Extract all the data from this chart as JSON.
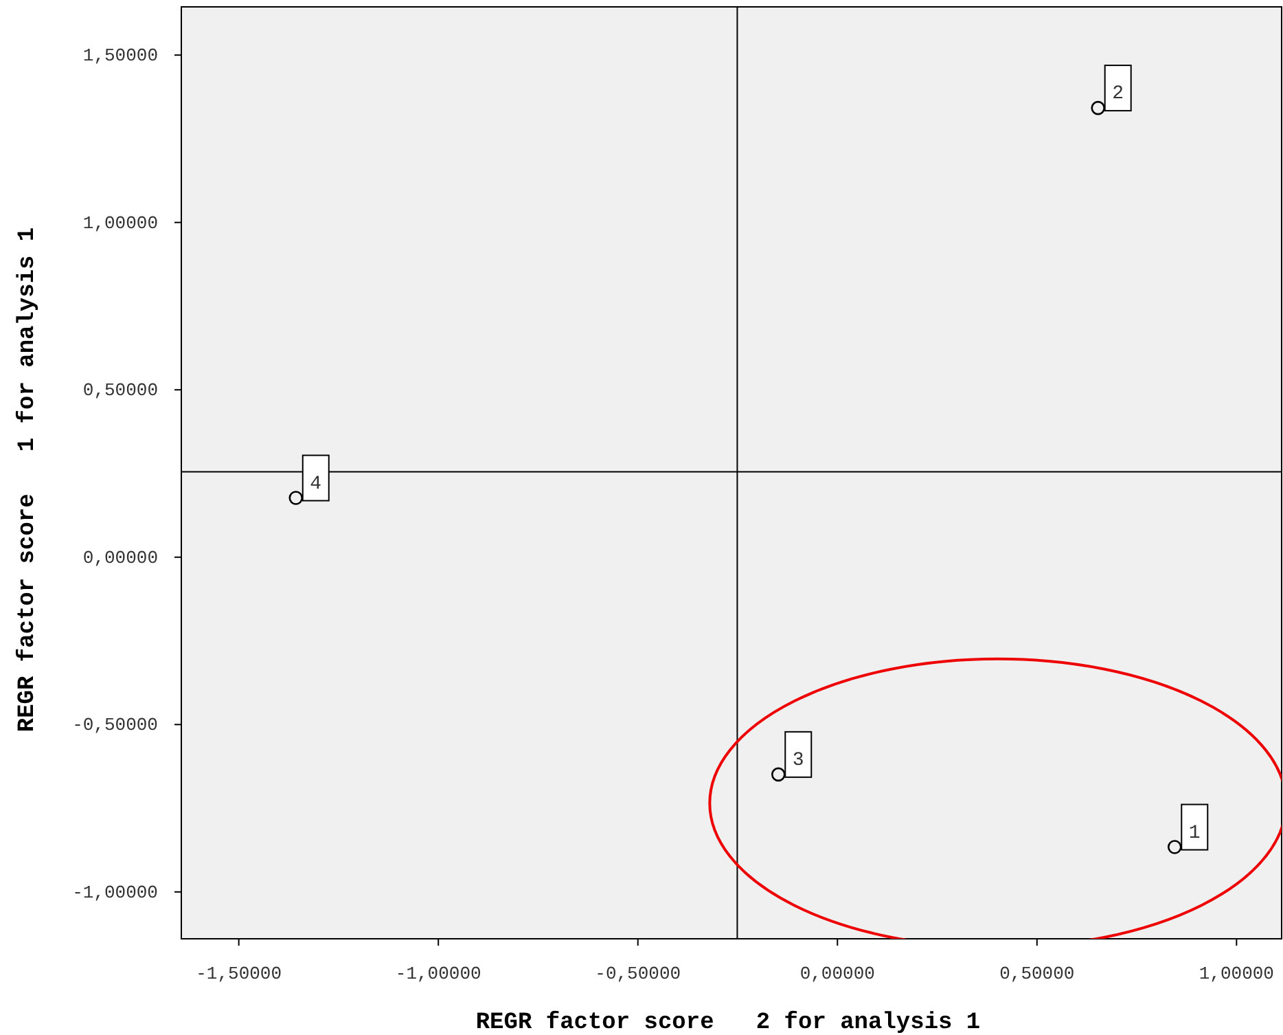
{
  "chart_data": {
    "type": "scatter",
    "xlabel": "REGR factor score   2 for analysis 1",
    "ylabel": "REGR factor score   1 for analysis 1",
    "x": [
      0.845,
      0.653,
      -0.148,
      -1.357
    ],
    "values": [
      -0.866,
      1.342,
      -0.649,
      0.177
    ],
    "color": "#000000",
    "marker": "circle",
    "grid": false,
    "xlim": [
      -1.644,
      1.113
    ],
    "ylim": [
      -1.14,
      1.644
    ],
    "xticks": [
      {
        "value": -1.5,
        "label": "-1,50000"
      },
      {
        "value": -1,
        "label": "-1,00000"
      },
      {
        "value": -0.5,
        "label": "-0,50000"
      },
      {
        "value": 0,
        "label": "0,00000"
      },
      {
        "value": 0.5,
        "label": "0,50000"
      },
      {
        "value": 1,
        "label": "1,00000"
      }
    ],
    "yticks": [
      {
        "value": -1,
        "label": "-1,00000"
      },
      {
        "value": -0.5,
        "label": "-0,50000"
      },
      {
        "value": 0,
        "label": "0,00000"
      },
      {
        "value": 0.5,
        "label": "0,50000"
      },
      {
        "value": 1,
        "label": "1,00000"
      },
      {
        "value": 1.5,
        "label": "1,50000"
      }
    ],
    "ref_lines": [
      {
        "axis": "x",
        "value": -0.251,
        "color": "#000000"
      },
      {
        "axis": "y",
        "value": 0.255,
        "color": "#000000"
      }
    ],
    "annotations": [
      {
        "text": "1",
        "x": 0.845,
        "y": -0.866
      },
      {
        "text": "2",
        "x": 0.653,
        "y": 1.342
      },
      {
        "text": "3",
        "x": -0.148,
        "y": -0.649
      },
      {
        "text": "4",
        "x": -1.357,
        "y": 0.177
      }
    ]
  }
}
